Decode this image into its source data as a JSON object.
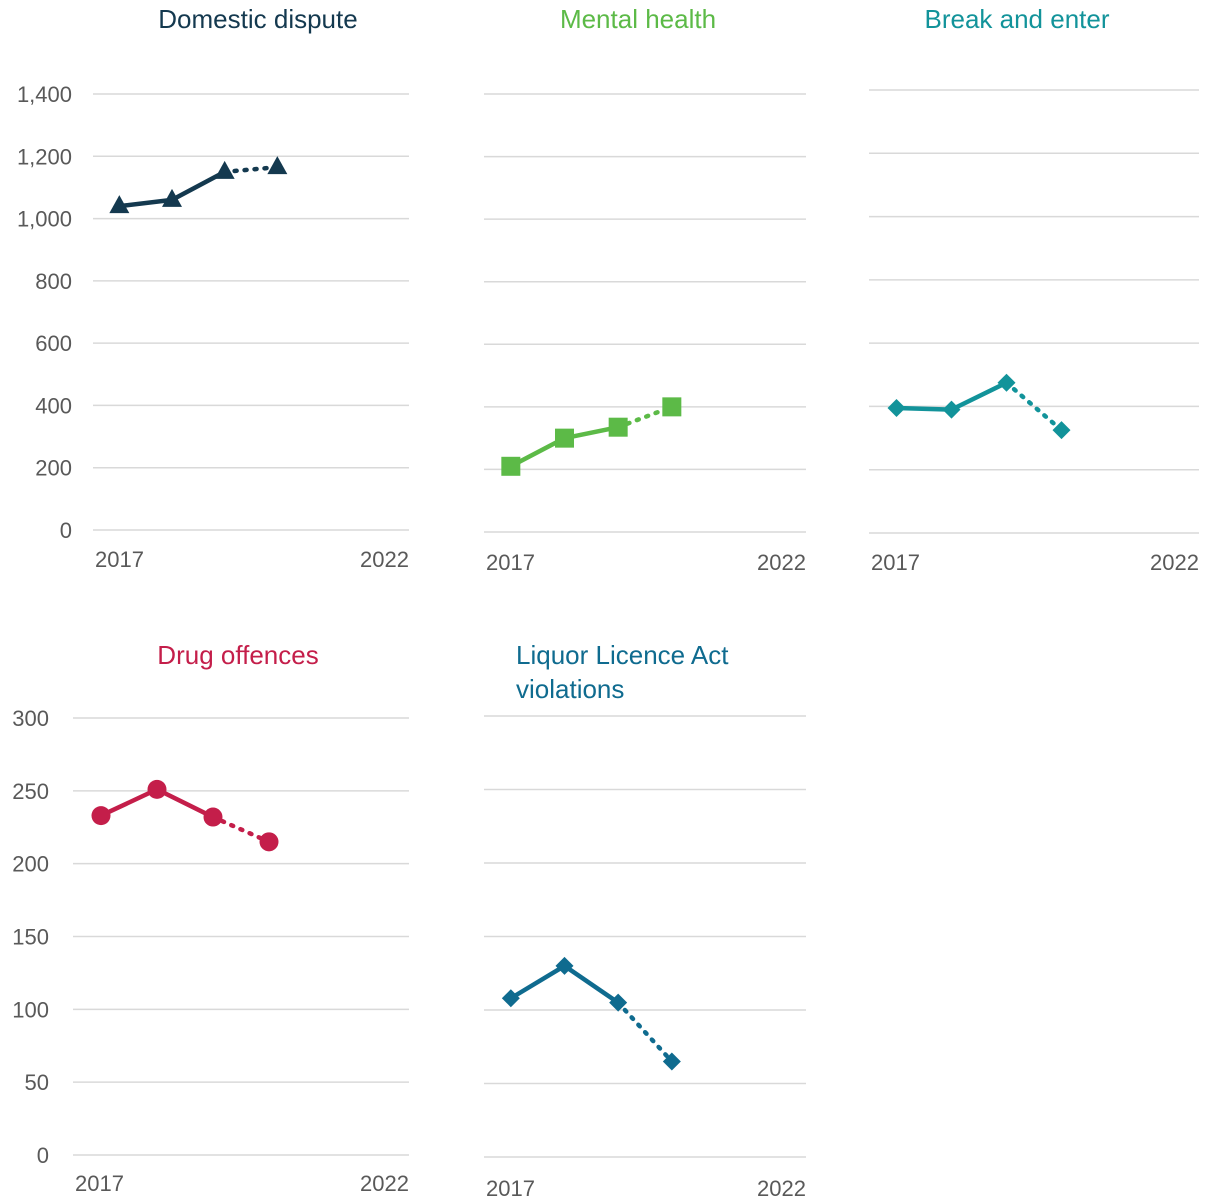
{
  "chart_data": [
    {
      "type": "line",
      "title": "Domestic dispute",
      "color": "#14394f",
      "marker": "triangle",
      "x": [
        2017,
        2018,
        2019,
        2020
      ],
      "values": [
        1040,
        1060,
        1150,
        1165
      ],
      "dotted_from_index": 2,
      "ylim": [
        0,
        1400
      ],
      "yticks": [
        "0",
        "200",
        "400",
        "600",
        "800",
        "1,000",
        "1,200",
        "1,400"
      ],
      "xticks": [
        "2017",
        "2022"
      ]
    },
    {
      "type": "line",
      "title": "Mental health",
      "color": "#5cba47",
      "marker": "square",
      "x": [
        2017,
        2018,
        2019,
        2020
      ],
      "values": [
        210,
        300,
        335,
        400
      ],
      "dotted_from_index": 2,
      "ylim": [
        0,
        1400
      ],
      "xticks": [
        "2017",
        "2022"
      ]
    },
    {
      "type": "line",
      "title": "Break and enter",
      "color": "#12939a",
      "marker": "diamond",
      "x": [
        2017,
        2018,
        2019,
        2020
      ],
      "values": [
        395,
        390,
        475,
        325
      ],
      "dotted_from_index": 2,
      "ylim": [
        0,
        1400
      ],
      "xticks": [
        "2017",
        "2022"
      ]
    },
    {
      "type": "line",
      "title": "Drug offences",
      "color": "#c41e4a",
      "marker": "circle",
      "x": [
        2017,
        2018,
        2019,
        2020
      ],
      "values": [
        233,
        251,
        232,
        215
      ],
      "dotted_from_index": 2,
      "ylim": [
        0,
        300
      ],
      "yticks": [
        "0",
        "50",
        "100",
        "150",
        "200",
        "250",
        "300"
      ],
      "xticks": [
        "2017",
        "2022"
      ]
    },
    {
      "type": "line",
      "title_lines": [
        "Liquor Licence Act",
        "violations"
      ],
      "color": "#0f6b8f",
      "marker": "diamond",
      "x": [
        2017,
        2018,
        2019,
        2020
      ],
      "values": [
        108,
        130,
        105,
        65
      ],
      "dotted_from_index": 2,
      "ylim": [
        0,
        300
      ],
      "xticks": [
        "2017",
        "2022"
      ]
    }
  ]
}
